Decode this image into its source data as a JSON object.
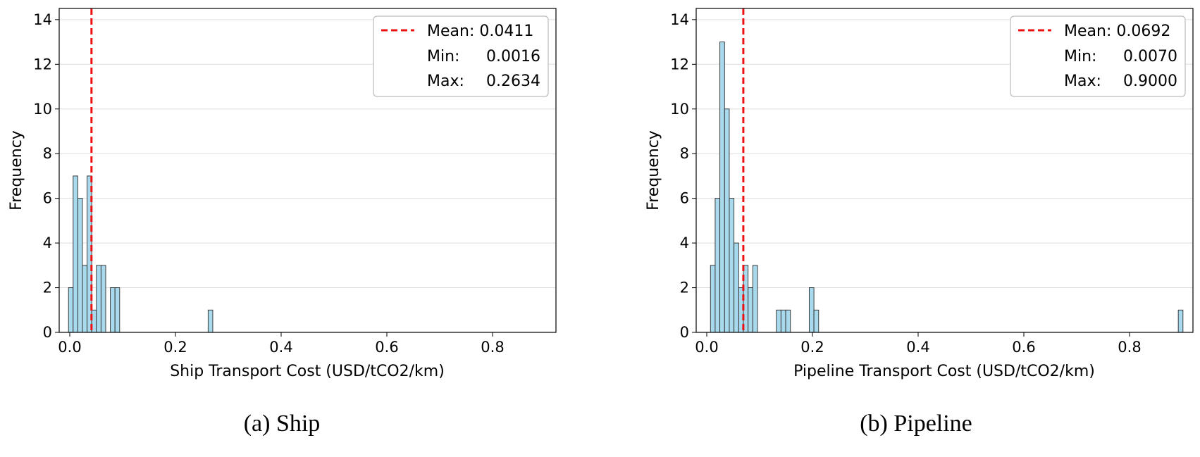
{
  "chart_data": [
    {
      "type": "bar",
      "title": "",
      "caption": "(a) Ship",
      "xlabel": "Ship Transport Cost (USD/tCO2/km)",
      "ylabel": "Frequency",
      "xlim": [
        -0.02,
        0.92
      ],
      "ylim": [
        0,
        14.5
      ],
      "xticks": [
        0.0,
        0.2,
        0.4,
        0.6,
        0.8
      ],
      "xtick_labels": [
        "0.0",
        "0.2",
        "0.4",
        "0.6",
        "0.8"
      ],
      "yticks": [
        0,
        2,
        4,
        6,
        8,
        10,
        12,
        14
      ],
      "ytick_labels": [
        "0",
        "2",
        "4",
        "6",
        "8",
        "10",
        "12",
        "14"
      ],
      "grid": "y",
      "bar_width": 0.0088,
      "bins": [
        {
          "x": -0.0024,
          "count": 2
        },
        {
          "x": 0.0064,
          "count": 7
        },
        {
          "x": 0.0152,
          "count": 6
        },
        {
          "x": 0.024,
          "count": 3
        },
        {
          "x": 0.0328,
          "count": 7
        },
        {
          "x": 0.0416,
          "count": 1
        },
        {
          "x": 0.0504,
          "count": 3
        },
        {
          "x": 0.0592,
          "count": 3
        },
        {
          "x": 0.0768,
          "count": 2
        },
        {
          "x": 0.0856,
          "count": 2
        },
        {
          "x": 0.2618,
          "count": 1
        }
      ],
      "mean_line": 0.0411,
      "legend": {
        "position": "upper right",
        "mean_label": "Mean: 0.0411",
        "min_label": "Min:",
        "min_value": "0.0016",
        "max_label": "Max:",
        "max_value": "0.2634"
      },
      "colors": {
        "bar_fill": "#a9d9ec",
        "bar_edge": "#2b2b2b",
        "mean_line": "#ee1111",
        "grid": "#dddddd"
      }
    },
    {
      "type": "bar",
      "title": "",
      "caption": "(b) Pipeline",
      "xlabel": "Pipeline Transport Cost (USD/tCO2/km)",
      "ylabel": "Frequency",
      "xlim": [
        -0.02,
        0.92
      ],
      "ylim": [
        0,
        14.5
      ],
      "xticks": [
        0.0,
        0.2,
        0.4,
        0.6,
        0.8
      ],
      "xtick_labels": [
        "0.0",
        "0.2",
        "0.4",
        "0.6",
        "0.8"
      ],
      "yticks": [
        0,
        2,
        4,
        6,
        8,
        10,
        12,
        14
      ],
      "ytick_labels": [
        "0",
        "2",
        "4",
        "6",
        "8",
        "10",
        "12",
        "14"
      ],
      "grid": "y",
      "bar_width": 0.0089,
      "bins": [
        {
          "x": 0.007,
          "count": 3
        },
        {
          "x": 0.0159,
          "count": 6
        },
        {
          "x": 0.0248,
          "count": 13
        },
        {
          "x": 0.0337,
          "count": 10
        },
        {
          "x": 0.0426,
          "count": 6
        },
        {
          "x": 0.0515,
          "count": 4
        },
        {
          "x": 0.0604,
          "count": 2
        },
        {
          "x": 0.0693,
          "count": 3
        },
        {
          "x": 0.0782,
          "count": 2
        },
        {
          "x": 0.0871,
          "count": 3
        },
        {
          "x": 0.1316,
          "count": 1
        },
        {
          "x": 0.1405,
          "count": 1
        },
        {
          "x": 0.1494,
          "count": 1
        },
        {
          "x": 0.1939,
          "count": 2
        },
        {
          "x": 0.2028,
          "count": 1
        },
        {
          "x": 0.8922,
          "count": 1
        }
      ],
      "mean_line": 0.0692,
      "legend": {
        "position": "upper right",
        "mean_label": "Mean: 0.0692",
        "min_label": "Min:",
        "min_value": "0.0070",
        "max_label": "Max:",
        "max_value": "0.9000"
      },
      "colors": {
        "bar_fill": "#a9d9ec",
        "bar_edge": "#2b2b2b",
        "mean_line": "#ee1111",
        "grid": "#dddddd"
      }
    }
  ]
}
